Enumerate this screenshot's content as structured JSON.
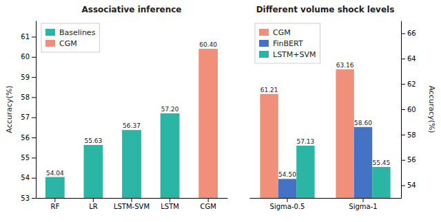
{
  "chart_data": [
    {
      "type": "bar",
      "title": "Associative inference",
      "categories": [
        "RF",
        "LR",
        "LSTM-SVM",
        "LSTM",
        "CGM"
      ],
      "series": [
        {
          "name": "Baselines",
          "color": "#2ab5a5",
          "values": [
            54.04,
            55.63,
            56.37,
            57.2,
            null
          ],
          "value_labels": [
            "54.04",
            "55.63",
            "56.37",
            "57.20",
            null
          ]
        },
        {
          "name": "CGM",
          "color": "#f0907a",
          "values": [
            null,
            null,
            null,
            null,
            60.4
          ],
          "value_labels": [
            null,
            null,
            null,
            null,
            "60.40"
          ]
        }
      ],
      "y_label": "Accuracy(%)",
      "ylim": [
        53,
        61.8
      ],
      "yticks": [
        53,
        54,
        55,
        56,
        57,
        58,
        59,
        60,
        61
      ],
      "data_labels": true,
      "legend": "upper-left",
      "grid": false
    },
    {
      "type": "bar",
      "title": "Different volume shock levels",
      "categories": [
        "Sigma-0.5",
        "Sigma-1"
      ],
      "series": [
        {
          "name": "CGM",
          "color": "#f0907a",
          "values": [
            61.21,
            63.16
          ],
          "value_labels": [
            "61.21",
            "63.16"
          ]
        },
        {
          "name": "FinBERT",
          "color": "#4472c4",
          "values": [
            54.5,
            58.6
          ],
          "value_labels": [
            "54.50",
            "58.60"
          ]
        },
        {
          "name": "LSTM+SVM",
          "color": "#2ab5a5",
          "values": [
            57.13,
            55.45
          ],
          "value_labels": [
            "57.13",
            "55.45"
          ]
        }
      ],
      "y_label": "Accuracy(%)",
      "ylim": [
        53,
        67
      ],
      "yticks": [
        54,
        56,
        58,
        60,
        62,
        64,
        66
      ],
      "data_labels": true,
      "legend": "upper-left",
      "grid": false
    }
  ]
}
